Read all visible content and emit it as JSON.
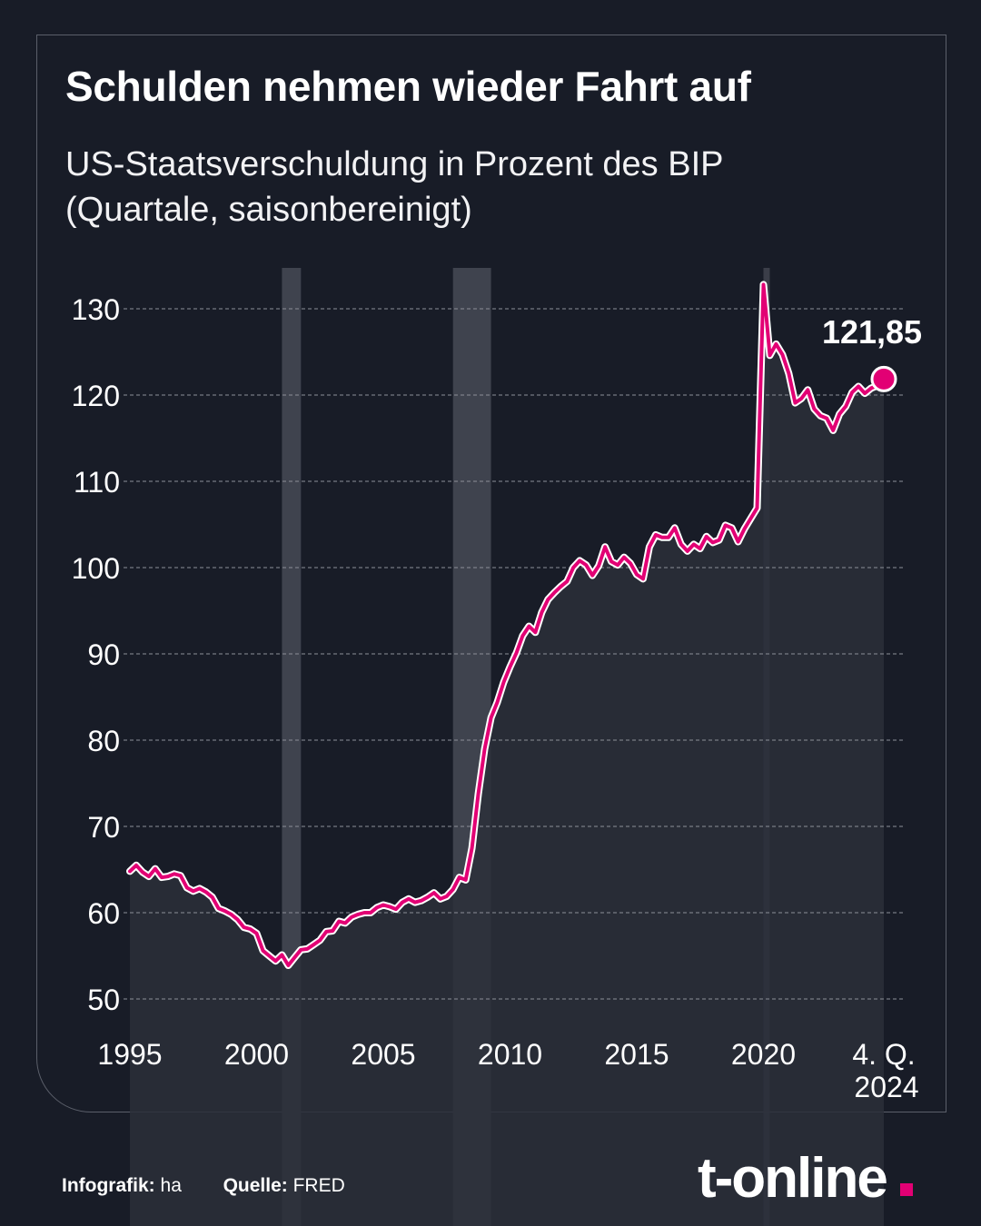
{
  "title": "Schulden nehmen wieder Fahrt auf",
  "subtitle_line1": "US-Staatsverschuldung in Prozent des BIP",
  "subtitle_line2": "(Quartale, saisonbereinigt)",
  "footer": {
    "credit_label": "Infografik:",
    "credit_value": "ha",
    "source_label": "Quelle:",
    "source_value": "FRED"
  },
  "logo": "t-online",
  "colors": {
    "background": "#181c27",
    "line": "#e20074",
    "area": "#2c2f3a",
    "recession_band": "#3f434e",
    "grid": "#8c8f98",
    "brand_dot": "#e20074"
  },
  "chart_data": {
    "type": "area",
    "title": "Schulden nehmen wieder Fahrt auf",
    "subtitle": "US-Staatsverschuldung in Prozent des BIP (Quartale, saisonbereinigt)",
    "xlabel": "",
    "ylabel": "",
    "ylim": [
      50,
      135
    ],
    "xlim": [
      1995,
      2025.25
    ],
    "yticks": [
      50,
      60,
      70,
      80,
      90,
      100,
      110,
      120,
      130
    ],
    "xticks": [
      {
        "value": 1995,
        "label": "1995"
      },
      {
        "value": 2000,
        "label": "2000"
      },
      {
        "value": 2005,
        "label": "2005"
      },
      {
        "value": 2010,
        "label": "2010"
      },
      {
        "value": 2015,
        "label": "2015"
      },
      {
        "value": 2020,
        "label": "2020"
      },
      {
        "value": 2024.75,
        "label": "4. Q.",
        "label2": "2024"
      }
    ],
    "grid": true,
    "recessions": [
      [
        2001.0,
        2001.75
      ],
      [
        2007.75,
        2009.25
      ],
      [
        2020.0,
        2020.25
      ]
    ],
    "last_value_label": "121,85",
    "series": [
      {
        "x": [
          1995.0,
          1995.25,
          1995.5,
          1995.75,
          1996.0,
          1996.25,
          1996.5,
          1996.75,
          1997.0,
          1997.25,
          1997.5,
          1997.75,
          1998.0,
          1998.25,
          1998.5,
          1998.75,
          1999.0,
          1999.25,
          1999.5,
          1999.75,
          2000.0,
          2000.25,
          2000.5,
          2000.75,
          2001.0,
          2001.25,
          2001.5,
          2001.75,
          2002.0,
          2002.25,
          2002.5,
          2002.75,
          2003.0,
          2003.25,
          2003.5,
          2003.75,
          2004.0,
          2004.25,
          2004.5,
          2004.75,
          2005.0,
          2005.25,
          2005.5,
          2005.75,
          2006.0,
          2006.25,
          2006.5,
          2006.75,
          2007.0,
          2007.25,
          2007.5,
          2007.75,
          2008.0,
          2008.25,
          2008.5,
          2008.75,
          2009.0,
          2009.25,
          2009.5,
          2009.75,
          2010.0,
          2010.25,
          2010.5,
          2010.75,
          2011.0,
          2011.25,
          2011.5,
          2011.75,
          2012.0,
          2012.25,
          2012.5,
          2012.75,
          2013.0,
          2013.25,
          2013.5,
          2013.75,
          2014.0,
          2014.25,
          2014.5,
          2014.75,
          2015.0,
          2015.25,
          2015.5,
          2015.75,
          2016.0,
          2016.25,
          2016.5,
          2016.75,
          2017.0,
          2017.25,
          2017.5,
          2017.75,
          2018.0,
          2018.25,
          2018.5,
          2018.75,
          2019.0,
          2019.25,
          2019.5,
          2019.75,
          2020.0,
          2020.25,
          2020.5,
          2020.75,
          2021.0,
          2021.25,
          2021.5,
          2021.75,
          2022.0,
          2022.25,
          2022.5,
          2022.75,
          2023.0,
          2023.25,
          2023.5,
          2023.75,
          2024.0,
          2024.25,
          2024.5,
          2024.75
        ],
        "values": [
          64.8,
          65.5,
          64.7,
          64.2,
          65.1,
          64.1,
          64.2,
          64.5,
          64.3,
          62.9,
          62.5,
          62.8,
          62.4,
          61.8,
          60.5,
          60.2,
          59.8,
          59.2,
          58.3,
          58.1,
          57.6,
          55.6,
          55.0,
          54.4,
          55.1,
          53.9,
          54.8,
          55.7,
          55.8,
          56.3,
          56.8,
          57.8,
          57.9,
          59.0,
          58.8,
          59.5,
          59.8,
          60.0,
          60.0,
          60.6,
          60.9,
          60.7,
          60.4,
          61.2,
          61.6,
          61.2,
          61.4,
          61.8,
          62.3,
          61.6,
          61.9,
          62.7,
          64.1,
          63.8,
          67.5,
          73.8,
          79.0,
          82.6,
          84.4,
          86.7,
          88.5,
          90.1,
          92.1,
          93.2,
          92.5,
          94.8,
          96.3,
          97.1,
          97.8,
          98.4,
          100.0,
          100.8,
          100.3,
          99.1,
          100.2,
          102.4,
          100.7,
          100.3,
          101.2,
          100.5,
          99.2,
          98.7,
          102.4,
          103.8,
          103.5,
          103.5,
          104.6,
          102.7,
          101.9,
          102.7,
          102.2,
          103.6,
          102.9,
          103.2,
          104.9,
          104.6,
          103.0,
          104.5,
          105.7,
          106.9,
          132.8,
          124.6,
          125.9,
          124.7,
          122.5,
          119.1,
          119.6,
          120.6,
          118.4,
          117.6,
          117.3,
          115.9,
          117.8,
          118.7,
          120.3,
          121.0,
          120.2,
          120.8,
          121.1,
          121.85
        ]
      }
    ]
  }
}
